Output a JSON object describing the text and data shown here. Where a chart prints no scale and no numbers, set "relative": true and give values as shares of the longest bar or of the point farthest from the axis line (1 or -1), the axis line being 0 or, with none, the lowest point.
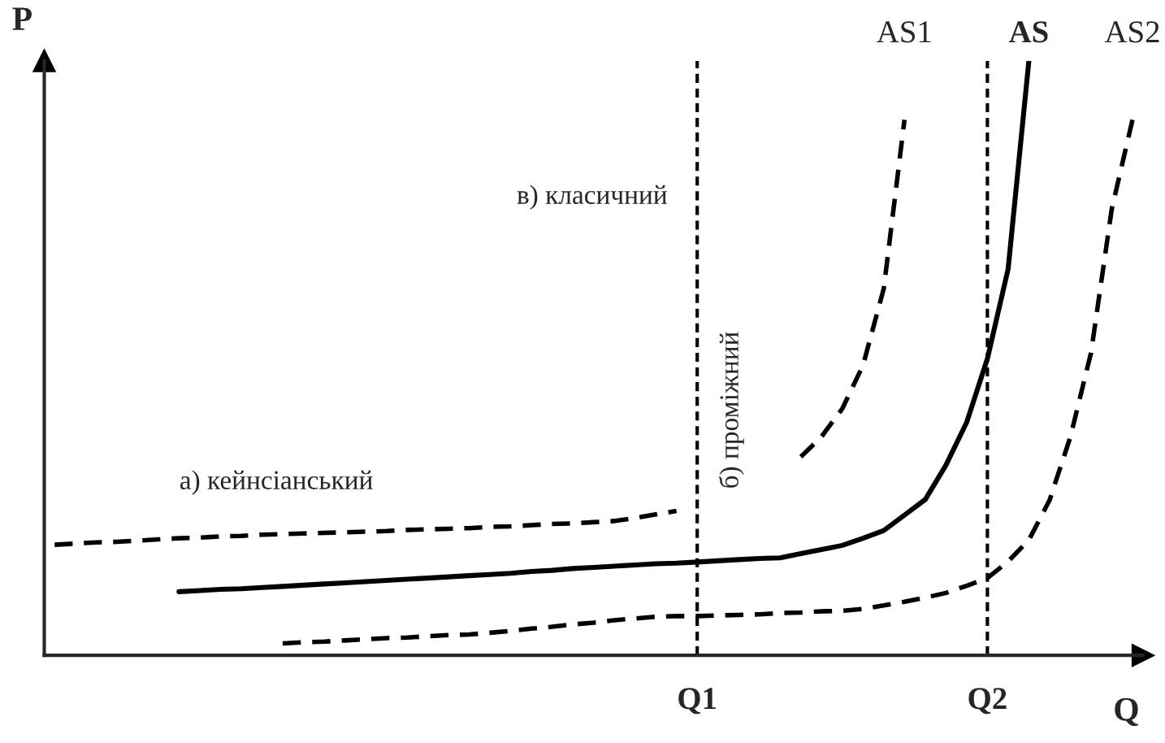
{
  "chart_data": {
    "type": "line",
    "relative": true,
    "xlabel": "Q",
    "ylabel": "P",
    "categories": [
      null,
      null,
      null,
      null,
      null,
      null,
      null,
      null,
      null,
      null,
      null,
      null,
      null,
      null,
      null,
      null,
      null,
      null,
      null,
      null,
      null,
      null,
      null,
      null,
      null,
      null,
      null,
      null,
      null,
      null,
      null,
      "Q1",
      null,
      null,
      null,
      null,
      null,
      null,
      null,
      null,
      null,
      null,
      null,
      null,
      null,
      "Q2",
      null,
      null,
      null,
      null,
      null,
      null,
      null
    ],
    "grid": false,
    "legend": false,
    "marker": "none",
    "series": [
      {
        "name": "AS",
        "color": "#000000",
        "line_style": "solid",
        "values": [
          null,
          null,
          null,
          null,
          null,
          null,
          0.107,
          0.109,
          0.111,
          0.112,
          0.114,
          0.116,
          0.118,
          0.12,
          0.122,
          0.124,
          0.126,
          0.128,
          0.13,
          0.132,
          0.134,
          0.136,
          0.138,
          0.141,
          0.143,
          0.146,
          0.148,
          0.15,
          0.152,
          0.154,
          0.155,
          0.157,
          0.159,
          0.161,
          0.163,
          0.164,
          0.171,
          0.178,
          0.185,
          0.197,
          0.21,
          0.236,
          0.262,
          0.32,
          0.392,
          0.499,
          0.65,
          1.0,
          null,
          null,
          null,
          null,
          null
        ]
      },
      {
        "name": "AS1",
        "color": "#000000",
        "line_style": "dashed",
        "values": [
          0.186,
          0.188,
          0.19,
          0.191,
          0.193,
          0.195,
          0.197,
          0.198,
          0.2,
          0.201,
          0.203,
          0.204,
          0.205,
          0.206,
          0.207,
          0.208,
          0.209,
          0.211,
          0.212,
          0.213,
          0.214,
          0.216,
          0.217,
          0.219,
          0.221,
          0.222,
          0.224,
          0.226,
          0.231,
          0.237,
          0.243,
          null,
          null,
          null,
          null,
          null,
          0.334,
          0.368,
          0.415,
          0.488,
          0.617,
          0.901,
          null,
          null,
          null,
          null,
          null,
          null,
          null,
          null,
          null,
          null,
          null
        ]
      },
      {
        "name": "AS2",
        "color": "#000000",
        "line_style": "dashed",
        "values": [
          null,
          null,
          null,
          null,
          null,
          null,
          null,
          null,
          null,
          null,
          null,
          0.02,
          0.022,
          0.023,
          0.025,
          0.027,
          0.029,
          0.03,
          0.032,
          0.034,
          0.035,
          0.038,
          0.041,
          0.045,
          0.048,
          0.052,
          0.055,
          0.059,
          0.062,
          0.065,
          0.066,
          0.066,
          0.067,
          0.068,
          0.069,
          0.071,
          0.072,
          0.074,
          0.075,
          0.078,
          0.084,
          0.09,
          0.097,
          0.105,
          0.117,
          0.13,
          0.158,
          0.194,
          0.261,
          0.367,
          0.509,
          0.751,
          0.901
        ]
      }
    ],
    "ref_lines": [
      {
        "axis": "x",
        "value": "Q1",
        "color": "#000000",
        "line_style": "dashed"
      },
      {
        "axis": "x",
        "value": "Q2",
        "color": "#000000",
        "line_style": "dashed"
      }
    ],
    "annotations": [
      "а) кейнсіанський",
      "б) промiжний",
      "в) класичний"
    ]
  }
}
